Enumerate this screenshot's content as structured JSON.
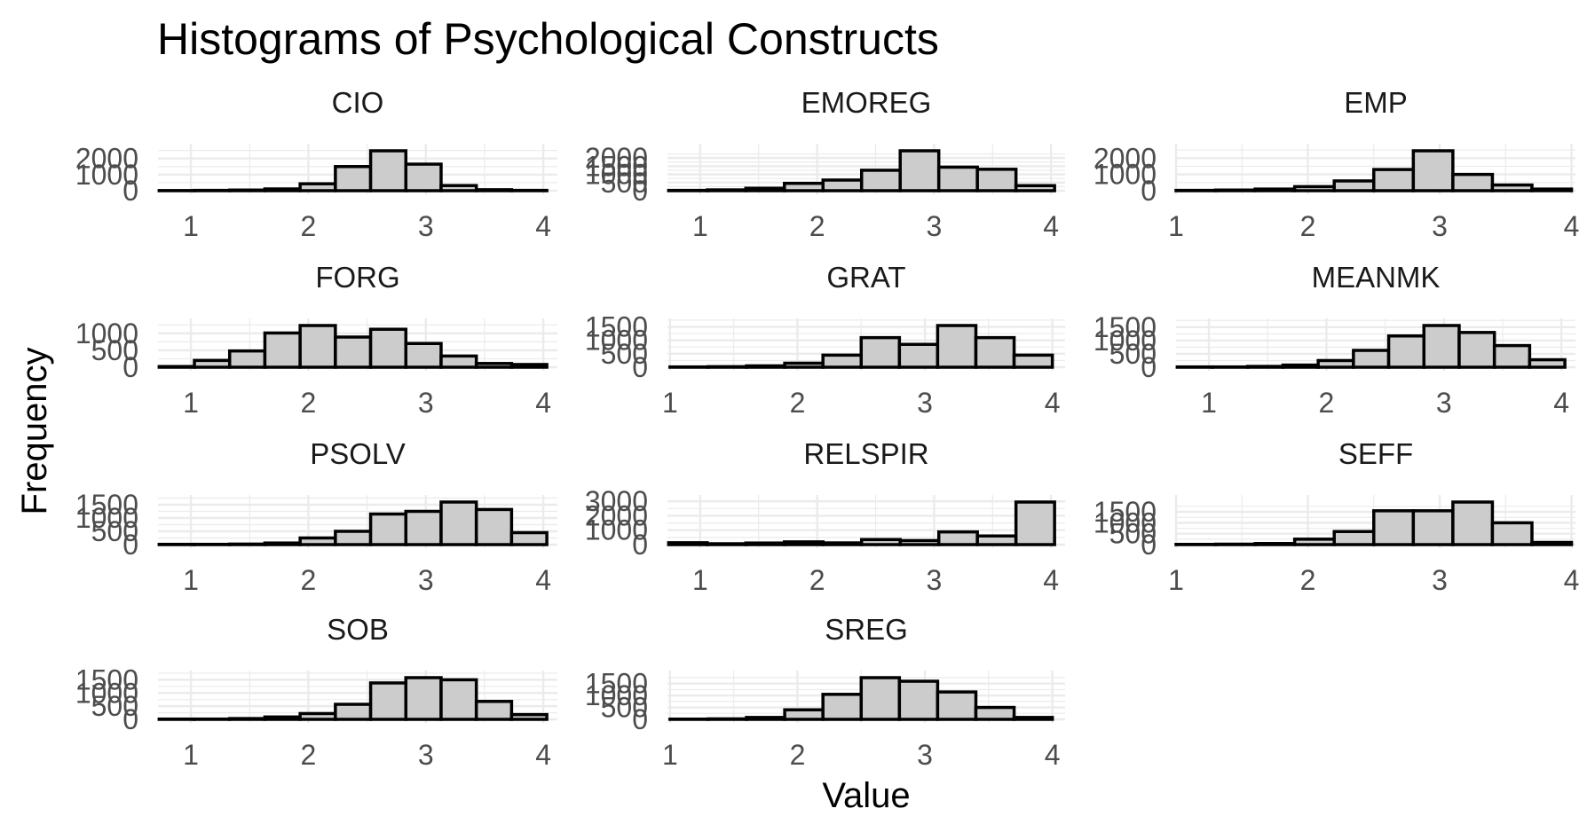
{
  "chart_data": {
    "type": "bar",
    "title": "Histograms of Psychological Constructs",
    "xlabel": "Value",
    "ylabel": "Frequency",
    "grid": true,
    "legend": "none",
    "bar_fill": "#cccccc",
    "bar_stroke": "#000000",
    "grid_color": "#ebebeb",
    "panels": [
      {
        "name": "CIO",
        "bin_edges": [
          0.73,
          1.03,
          1.33,
          1.63,
          1.93,
          2.23,
          2.53,
          2.83,
          3.13,
          3.43,
          3.73,
          4.03
        ],
        "counts": [
          10,
          20,
          40,
          110,
          430,
          1500,
          2480,
          1650,
          320,
          60,
          20
        ],
        "xlim": [
          0.72,
          4.12
        ],
        "xticks": [
          1,
          2,
          3,
          4
        ],
        "ylim": [
          0,
          2480
        ],
        "yticks": [
          0,
          1000,
          2000
        ]
      },
      {
        "name": "EMOREG",
        "bin_edges": [
          0.73,
          1.06,
          1.39,
          1.72,
          2.05,
          2.38,
          2.71,
          3.04,
          3.37,
          3.7,
          4.03
        ],
        "counts": [
          20,
          50,
          150,
          450,
          650,
          1250,
          2440,
          1440,
          1310,
          310
        ],
        "xlim": [
          0.72,
          4.12
        ],
        "xticks": [
          1,
          2,
          3,
          4
        ],
        "ylim": [
          0,
          2440
        ],
        "yticks": [
          0,
          500,
          1000,
          1500,
          2000
        ]
      },
      {
        "name": "EMP",
        "bin_edges": [
          1.0,
          1.3,
          1.6,
          1.9,
          2.2,
          2.5,
          2.8,
          3.1,
          3.4,
          3.7,
          4.0
        ],
        "counts": [
          20,
          40,
          100,
          250,
          600,
          1300,
          2450,
          1000,
          350,
          100
        ],
        "xlim": [
          1.0,
          4.03
        ],
        "xticks": [
          1,
          2,
          3,
          4
        ],
        "ylim": [
          0,
          2450
        ],
        "yticks": [
          0,
          1000,
          2000
        ]
      },
      {
        "name": "FORG",
        "bin_edges": [
          0.73,
          1.03,
          1.33,
          1.63,
          1.93,
          2.23,
          2.53,
          2.83,
          3.13,
          3.43,
          3.73,
          4.03
        ],
        "counts": [
          20,
          200,
          480,
          1010,
          1230,
          890,
          1120,
          700,
          330,
          110,
          80
        ],
        "xlim": [
          0.72,
          4.12
        ],
        "xticks": [
          1,
          2,
          3,
          4
        ],
        "ylim": [
          0,
          1230
        ],
        "yticks": [
          0,
          500,
          1000
        ]
      },
      {
        "name": "GRAT",
        "bin_edges": [
          1.0,
          1.3,
          1.6,
          1.9,
          2.2,
          2.5,
          2.8,
          3.1,
          3.4,
          3.7,
          4.0
        ],
        "counts": [
          10,
          20,
          50,
          150,
          450,
          1100,
          850,
          1550,
          1100,
          450
        ],
        "xlim": [
          0.98,
          4.1
        ],
        "xticks": [
          1,
          2,
          3,
          4
        ],
        "ylim": [
          0,
          1550
        ],
        "yticks": [
          0,
          500,
          1000,
          1500
        ]
      },
      {
        "name": "MEANMK",
        "bin_edges": [
          0.73,
          1.03,
          1.33,
          1.63,
          1.93,
          2.23,
          2.53,
          2.83,
          3.13,
          3.43,
          3.73,
          4.03
        ],
        "counts": [
          10,
          10,
          30,
          80,
          250,
          630,
          1170,
          1560,
          1300,
          810,
          280
        ],
        "xlim": [
          0.72,
          4.12
        ],
        "xticks": [
          1,
          2,
          3,
          4
        ],
        "ylim": [
          0,
          1560
        ],
        "yticks": [
          0,
          500,
          1000,
          1500
        ]
      },
      {
        "name": "PSOLV",
        "bin_edges": [
          0.73,
          1.03,
          1.33,
          1.63,
          1.93,
          2.23,
          2.53,
          2.83,
          3.13,
          3.43,
          3.73,
          4.03
        ],
        "counts": [
          10,
          10,
          20,
          60,
          250,
          500,
          1150,
          1250,
          1600,
          1320,
          450
        ],
        "xlim": [
          0.72,
          4.12
        ],
        "xticks": [
          1,
          2,
          3,
          4
        ],
        "ylim": [
          0,
          1600
        ],
        "yticks": [
          0,
          500,
          1000,
          1500
        ]
      },
      {
        "name": "RELSPIR",
        "bin_edges": [
          0.73,
          1.06,
          1.39,
          1.72,
          2.05,
          2.38,
          2.71,
          3.04,
          3.37,
          3.7,
          4.03
        ],
        "counts": [
          130,
          60,
          110,
          190,
          120,
          350,
          280,
          880,
          600,
          2950
        ],
        "xlim": [
          0.72,
          4.12
        ],
        "xticks": [
          1,
          2,
          3,
          4
        ],
        "ylim": [
          0,
          2950
        ],
        "yticks": [
          0,
          1000,
          2000,
          3000
        ]
      },
      {
        "name": "SEFF",
        "bin_edges": [
          1.0,
          1.3,
          1.6,
          1.9,
          2.2,
          2.5,
          2.8,
          3.1,
          3.4,
          3.7,
          4.0
        ],
        "counts": [
          10,
          20,
          50,
          250,
          600,
          1550,
          1550,
          1950,
          1000,
          100
        ],
        "xlim": [
          1.0,
          4.03
        ],
        "xticks": [
          1,
          2,
          3,
          4
        ],
        "ylim": [
          0,
          1950
        ],
        "yticks": [
          0,
          500,
          1000,
          1500
        ]
      },
      {
        "name": "SOB",
        "bin_edges": [
          0.73,
          1.03,
          1.33,
          1.63,
          1.93,
          2.23,
          2.53,
          2.83,
          3.13,
          3.43,
          3.73,
          4.03
        ],
        "counts": [
          10,
          10,
          30,
          90,
          220,
          570,
          1380,
          1580,
          1500,
          680,
          180
        ],
        "xlim": [
          0.72,
          4.12
        ],
        "xticks": [
          1,
          2,
          3,
          4
        ],
        "ylim": [
          0,
          1580
        ],
        "yticks": [
          0,
          500,
          1000,
          1500
        ]
      },
      {
        "name": "SREG",
        "bin_edges": [
          1.0,
          1.3,
          1.6,
          1.9,
          2.2,
          2.5,
          2.8,
          3.1,
          3.4,
          3.7,
          4.0
        ],
        "counts": [
          10,
          20,
          80,
          400,
          1050,
          1750,
          1600,
          1150,
          500,
          80
        ],
        "xlim": [
          0.98,
          4.1
        ],
        "xticks": [
          1,
          2,
          3,
          4
        ],
        "ylim": [
          0,
          1750
        ],
        "yticks": [
          0,
          500,
          1000,
          1500
        ]
      }
    ]
  }
}
